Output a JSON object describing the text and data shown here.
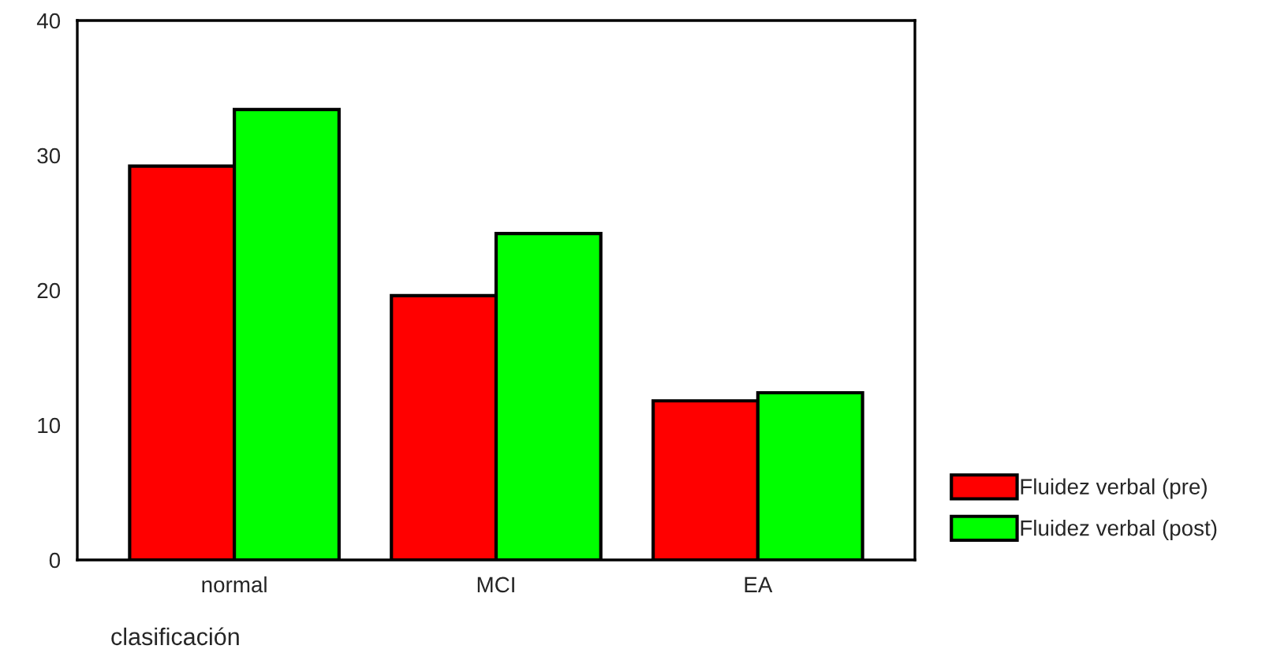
{
  "chart_data": {
    "type": "bar",
    "xlabel": "clasificación",
    "categories": [
      "normal",
      "MCI",
      "EA"
    ],
    "series": [
      {
        "name": "Fluidez verbal (pre)",
        "color": "#ff0000",
        "values": [
          29.2,
          19.6,
          11.8
        ]
      },
      {
        "name": "Fluidez verbal (post)",
        "color": "#00ff00",
        "values": [
          33.4,
          24.2,
          12.4
        ]
      }
    ],
    "ylim": [
      0,
      40
    ],
    "yticks": [
      0,
      10,
      20,
      30,
      40
    ],
    "grid": false,
    "legend": "right"
  }
}
